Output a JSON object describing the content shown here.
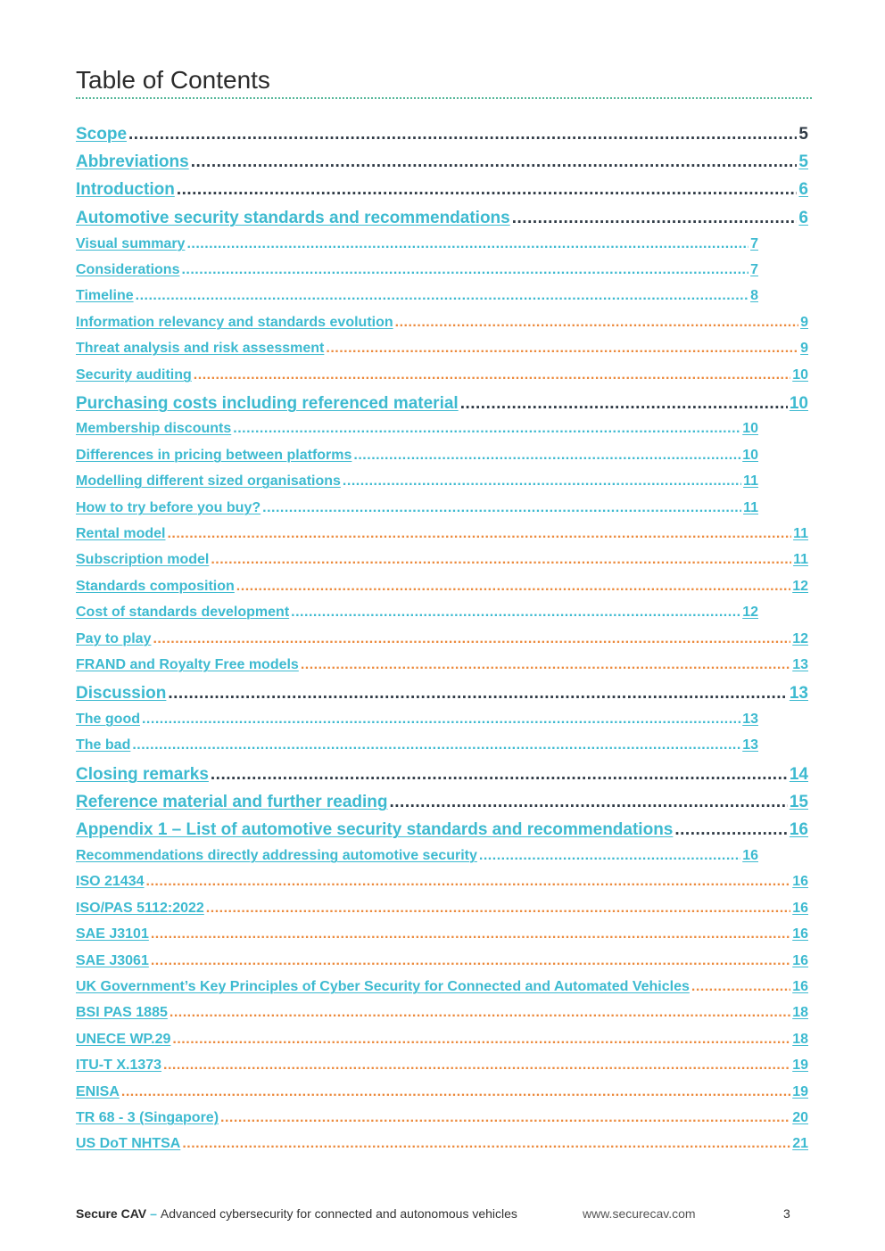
{
  "title": "Table of Contents",
  "entries": [
    {
      "label": "Scope",
      "page": "5",
      "level": 1,
      "dots": "dark",
      "pagecolor": "dark"
    },
    {
      "label": "Abbreviations",
      "page": "5",
      "level": 1,
      "dots": "dark"
    },
    {
      "label": "Introduction",
      "page": "6",
      "level": 1,
      "dots": "dark"
    },
    {
      "label": "Automotive security standards and recommendations",
      "page": "6",
      "level": 1,
      "dots": "dark"
    },
    {
      "label": "Visual summary",
      "page": "7",
      "level": 2,
      "dots": "teal",
      "short": true
    },
    {
      "label": "Considerations",
      "page": "7",
      "level": 2,
      "dots": "teal",
      "short": true
    },
    {
      "label": "Timeline",
      "page": "8",
      "level": 2,
      "dots": "teal",
      "short": true
    },
    {
      "label": "Information relevancy and standards evolution",
      "page": "9",
      "level": 2,
      "dots": "orange"
    },
    {
      "label": "Threat analysis and risk assessment",
      "page": "9",
      "level": 2,
      "dots": "orange"
    },
    {
      "label": "Security auditing",
      "page": "10",
      "level": 2,
      "dots": "orange"
    },
    {
      "label": "Purchasing costs including referenced material",
      "page": "10",
      "level": 1,
      "dots": "dark"
    },
    {
      "label": "Membership discounts",
      "page": "10",
      "level": 2,
      "dots": "teal",
      "short": true
    },
    {
      "label": "Differences in pricing between platforms",
      "page": "10",
      "level": 2,
      "dots": "teal",
      "short": true
    },
    {
      "label": "Modelling different sized organisations",
      "page": "11",
      "level": 2,
      "dots": "teal",
      "short": true
    },
    {
      "label": "How to try before you buy?",
      "page": "11",
      "level": 2,
      "dots": "teal",
      "short": true
    },
    {
      "label": "Rental model",
      "page": "11",
      "level": 2,
      "dots": "orange"
    },
    {
      "label": "Subscription model",
      "page": "11",
      "level": 2,
      "dots": "orange"
    },
    {
      "label": "Standards composition",
      "page": "12",
      "level": 2,
      "dots": "orange"
    },
    {
      "label": "Cost of standards development",
      "page": "12",
      "level": 2,
      "dots": "teal",
      "short": true
    },
    {
      "label": "Pay to play",
      "page": "12",
      "level": 2,
      "dots": "orange"
    },
    {
      "label": "FRAND and Royalty Free models",
      "page": "13",
      "level": 2,
      "dots": "orange"
    },
    {
      "label": "Discussion",
      "page": "13",
      "level": 1,
      "dots": "dark"
    },
    {
      "label": "The good",
      "page": "13",
      "level": 2,
      "dots": "teal",
      "short": true
    },
    {
      "label": "The bad",
      "page": "13",
      "level": 2,
      "dots": "teal",
      "short": true
    },
    {
      "label": "Closing remarks",
      "page": "14",
      "level": 1,
      "dots": "dark"
    },
    {
      "label": "Reference material and further reading",
      "page": "15",
      "level": 1,
      "dots": "dark"
    },
    {
      "label": "Appendix 1 – List of automotive security standards and recommendations",
      "page": "16",
      "level": 1,
      "dots": "dark"
    },
    {
      "label": "Recommendations directly addressing automotive security",
      "page": "16",
      "level": 2,
      "dots": "teal",
      "short": true
    },
    {
      "label": "ISO 21434",
      "page": "16",
      "level": 2,
      "dots": "orange"
    },
    {
      "label": "ISO/PAS 5112:2022",
      "page": "16",
      "level": 2,
      "dots": "orange"
    },
    {
      "label": "SAE J3101",
      "page": "16",
      "level": 2,
      "dots": "orange"
    },
    {
      "label": "SAE J3061",
      "page": "16",
      "level": 2,
      "dots": "orange"
    },
    {
      "label": "UK Government’s Key Principles of Cyber Security for Connected and Automated Vehicles",
      "page": "16",
      "level": 2,
      "dots": "orange"
    },
    {
      "label": "BSI PAS 1885",
      "page": "18",
      "level": 2,
      "dots": "orange"
    },
    {
      "label": "UNECE WP.29",
      "page": "18",
      "level": 2,
      "dots": "orange"
    },
    {
      "label": "ITU-T X.1373",
      "page": "19",
      "level": 2,
      "dots": "orange"
    },
    {
      "label": "ENISA",
      "page": "19",
      "level": 2,
      "dots": "orange"
    },
    {
      "label": "TR 68 - 3 (Singapore)",
      "page": "20",
      "level": 2,
      "dots": "orange"
    },
    {
      "label": "US DoT NHTSA",
      "page": "21",
      "level": 2,
      "dots": "orange"
    }
  ],
  "footer": {
    "brand": "Secure CAV",
    "dash": "–",
    "tagline": "Advanced cybersecurity for connected and autonomous vehicles",
    "url": "www.securecav.com",
    "page_number": "3"
  }
}
